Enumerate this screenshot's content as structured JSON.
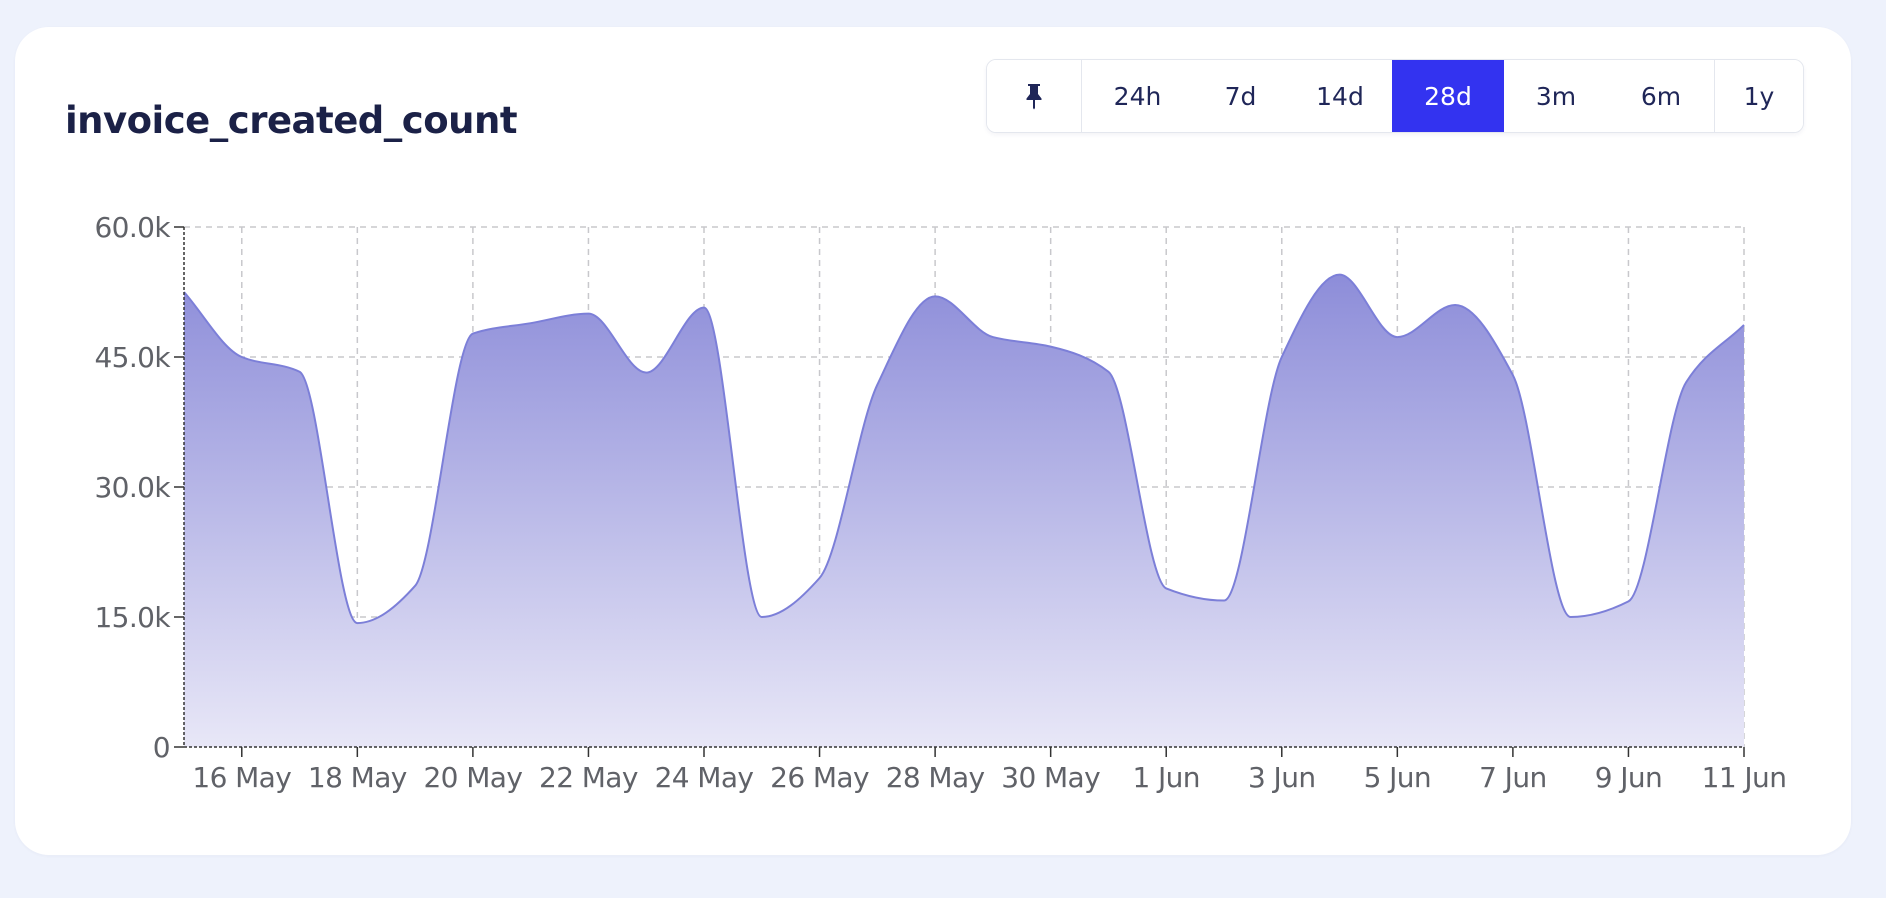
{
  "header": {
    "title": "invoice_created_count"
  },
  "range_selector": {
    "pin_icon": "pin-icon",
    "options": [
      {
        "label": "24h",
        "active": false
      },
      {
        "label": "7d",
        "active": false
      },
      {
        "label": "14d",
        "active": false
      },
      {
        "label": "28d",
        "active": true
      },
      {
        "label": "3m",
        "active": false
      },
      {
        "label": "6m",
        "active": false
      },
      {
        "label": "1y",
        "active": false
      }
    ]
  },
  "colors": {
    "accent": "#3333f0",
    "series_line": "#7c7fd8",
    "series_fill_top": "#8d8dd9",
    "series_fill_bottom": "#e8e7f7",
    "grid": "#c8c8cc",
    "title": "#1b2147"
  },
  "chart_data": {
    "type": "area",
    "title": "",
    "xlabel": "",
    "ylabel": "",
    "ylim": [
      0,
      60000
    ],
    "xlim": [
      "15 May",
      "11 Jun"
    ],
    "grid": true,
    "y_ticks": [
      {
        "value": 0,
        "label": "0"
      },
      {
        "value": 15000,
        "label": "15.0k"
      },
      {
        "value": 30000,
        "label": "30.0k"
      },
      {
        "value": 45000,
        "label": "45.0k"
      },
      {
        "value": 60000,
        "label": "60.0k"
      }
    ],
    "x_ticks": [
      {
        "value": "16 May",
        "label": "16 May"
      },
      {
        "value": "18 May",
        "label": "18 May"
      },
      {
        "value": "20 May",
        "label": "20 May"
      },
      {
        "value": "22 May",
        "label": "22 May"
      },
      {
        "value": "24 May",
        "label": "24 May"
      },
      {
        "value": "26 May",
        "label": "26 May"
      },
      {
        "value": "28 May",
        "label": "28 May"
      },
      {
        "value": "30 May",
        "label": "30 May"
      },
      {
        "value": "1 Jun",
        "label": "1 Jun"
      },
      {
        "value": "3 Jun",
        "label": "3 Jun"
      },
      {
        "value": "5 Jun",
        "label": "5 Jun"
      },
      {
        "value": "7 Jun",
        "label": "7 Jun"
      },
      {
        "value": "9 Jun",
        "label": "9 Jun"
      },
      {
        "value": "11 Jun",
        "label": "11 Jun"
      }
    ],
    "x": [
      "15 May",
      "16 May",
      "17 May",
      "18 May",
      "19 May",
      "20 May",
      "21 May",
      "22 May",
      "23 May",
      "24 May",
      "25 May",
      "26 May",
      "27 May",
      "28 May",
      "29 May",
      "30 May",
      "31 May",
      "1 Jun",
      "2 Jun",
      "3 Jun",
      "4 Jun",
      "5 Jun",
      "6 Jun",
      "7 Jun",
      "8 Jun",
      "9 Jun",
      "10 Jun",
      "11 Jun"
    ],
    "values": [
      52500,
      45000,
      43300,
      14300,
      18600,
      47700,
      48900,
      50000,
      43200,
      50700,
      15000,
      19500,
      41800,
      52000,
      47300,
      46200,
      43300,
      18300,
      16900,
      45000,
      54500,
      47300,
      51000,
      42900,
      15000,
      16800,
      42100,
      48700
    ]
  }
}
